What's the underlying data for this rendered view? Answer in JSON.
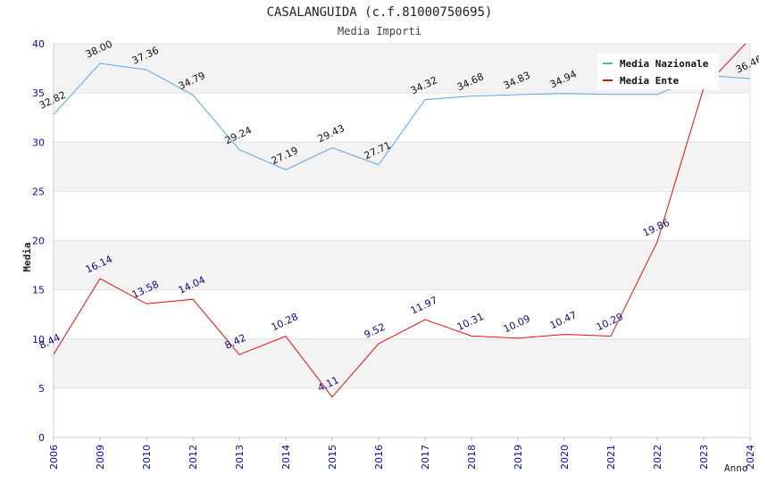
{
  "chart_data": {
    "type": "line",
    "title": "CASALANGUIDA (c.f.81000750695)",
    "subtitle": "Media Importi",
    "xlabel": "Anno",
    "ylabel": "Media",
    "ylim": [
      0,
      40
    ],
    "yticks": [
      "0",
      "5",
      "10",
      "15",
      "20",
      "25",
      "30",
      "35",
      "40"
    ],
    "categories": [
      "2006",
      "2009",
      "2010",
      "2012",
      "2013",
      "2014",
      "2015",
      "2016",
      "2017",
      "2018",
      "2019",
      "2020",
      "2021",
      "2022",
      "2023",
      "2024"
    ],
    "legend_position": "top-right",
    "series": [
      {
        "name": "Media Nazionale",
        "color": "#5aa5e6",
        "values": [
          32.82,
          38.0,
          37.36,
          34.79,
          29.24,
          27.19,
          29.43,
          27.71,
          34.32,
          34.68,
          34.83,
          34.94,
          34.85,
          34.85,
          36.8,
          36.46
        ],
        "labels": [
          "32.82",
          "38.00",
          "37.36",
          "34.79",
          "29.24",
          "27.19",
          "29.43",
          "27.71",
          "34.32",
          "34.68",
          "34.83",
          "34.94",
          "",
          "",
          "",
          "36.46"
        ]
      },
      {
        "name": "Media Ente",
        "color": "#e01010",
        "values": [
          8.44,
          16.14,
          13.58,
          14.04,
          8.42,
          10.28,
          4.11,
          9.52,
          11.97,
          10.31,
          10.09,
          10.47,
          10.29,
          19.86,
          35.5,
          40.5
        ],
        "labels": [
          "8.44",
          "16.14",
          "13.58",
          "14.04",
          "8.42",
          "10.28",
          "4.11",
          "9.52",
          "11.97",
          "10.31",
          "10.09",
          "10.47",
          "10.29",
          "19.86",
          "",
          ""
        ]
      }
    ]
  }
}
